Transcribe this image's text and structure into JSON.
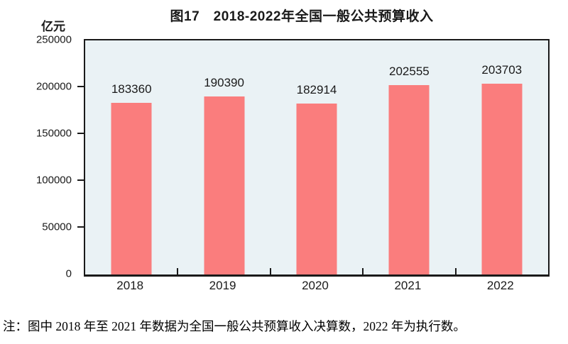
{
  "title": "图17　2018-2022年全国一般公共预算收入",
  "unit_label": "亿元",
  "note": "注：图中 2018 年至 2021 年数据为全国一般公共预算收入决算数，2022 年为执行数。",
  "colors": {
    "bar": "#FA7D7D",
    "plot_bg": "#EAF2F5",
    "axis": "#1A1A1A"
  },
  "chart_data": {
    "type": "bar",
    "categories": [
      "2018",
      "2019",
      "2020",
      "2021",
      "2022"
    ],
    "values": [
      183360,
      190390,
      182914,
      202555,
      203703
    ],
    "title": "图17　2018-2022年全国一般公共预算收入",
    "xlabel": "",
    "ylabel": "亿元",
    "ylim": [
      0,
      250000
    ],
    "yticks": [
      0,
      50000,
      100000,
      150000,
      200000,
      250000
    ],
    "grid": false,
    "legend": "none",
    "data_labels": true
  }
}
